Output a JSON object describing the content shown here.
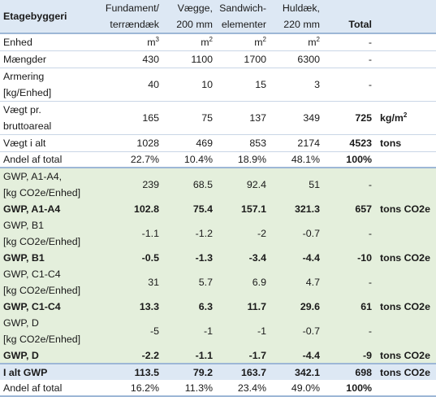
{
  "header": {
    "title": "Etagebyggeri",
    "col1": [
      "Fundament/",
      "terrændæk"
    ],
    "col2": [
      "Vægge,",
      "200 mm"
    ],
    "col3": [
      "Sandwich-",
      "elementer"
    ],
    "col4": [
      "Huldæk,",
      "220 mm"
    ],
    "total": "Total"
  },
  "rows": {
    "enhed": {
      "label": "Enhed",
      "unit_base": "m",
      "c1_exp": "3",
      "c2_exp": "2",
      "c3_exp": "2",
      "c4_exp": "2",
      "total": "-"
    },
    "maengder": {
      "label": "Mængder",
      "c1": "430",
      "c2": "1100",
      "c3": "1700",
      "c4": "6300",
      "total": "-"
    },
    "armering": {
      "label": [
        "Armering",
        "[kg/Enhed]"
      ],
      "c1": "40",
      "c2": "10",
      "c3": "15",
      "c4": "3",
      "total": "-"
    },
    "vaegt_pr": {
      "label": [
        "Vægt pr.",
        "bruttoareal"
      ],
      "c1": "165",
      "c2": "75",
      "c3": "137",
      "c4": "349",
      "total": "725",
      "unit_base": "kg/m",
      "unit_exp": "2"
    },
    "vaegt_alt": {
      "label": "Vægt i alt",
      "c1": "1028",
      "c2": "469",
      "c3": "853",
      "c4": "2174",
      "total": "4523",
      "unit": "tons"
    },
    "andel": {
      "label": "Andel af total",
      "c1": "22.7%",
      "c2": "10.4%",
      "c3": "18.9%",
      "c4": "48.1%",
      "total": "100%"
    },
    "gwp_a_factor": {
      "label": [
        "GWP, A1-A4,",
        "[kg CO2e/Enhed]"
      ],
      "c1": "239",
      "c2": "68.5",
      "c3": "92.4",
      "c4": "51",
      "total": "-"
    },
    "gwp_a": {
      "label": "GWP, A1-A4",
      "c1": "102.8",
      "c2": "75.4",
      "c3": "157.1",
      "c4": "321.3",
      "total": "657",
      "unit": "tons CO2e"
    },
    "gwp_b_factor": {
      "label": [
        "GWP, B1",
        "[kg CO2e/Enhed]"
      ],
      "c1": "-1.1",
      "c2": "-1.2",
      "c3": "-2",
      "c4": "-0.7",
      "total": "-"
    },
    "gwp_b": {
      "label": "GWP, B1",
      "c1": "-0.5",
      "c2": "-1.3",
      "c3": "-3.4",
      "c4": "-4.4",
      "total": "-10",
      "unit": "tons CO2e"
    },
    "gwp_c_factor": {
      "label": [
        "GWP, C1-C4",
        "[kg CO2e/Enhed]"
      ],
      "c1": "31",
      "c2": "5.7",
      "c3": "6.9",
      "c4": "4.7",
      "total": "-"
    },
    "gwp_c": {
      "label": "GWP, C1-C4",
      "c1": "13.3",
      "c2": "6.3",
      "c3": "11.7",
      "c4": "29.6",
      "total": "61",
      "unit": "tons CO2e"
    },
    "gwp_d_factor": {
      "label": [
        "GWP, D",
        "[kg CO2e/Enhed]"
      ],
      "c1": "-5",
      "c2": "-1",
      "c3": "-1",
      "c4": "-0.7",
      "total": "-"
    },
    "gwp_d": {
      "label": "GWP, D",
      "c1": "-2.2",
      "c2": "-1.1",
      "c3": "-1.7",
      "c4": "-4.4",
      "total": "-9",
      "unit": "tons CO2e"
    },
    "i_alt": {
      "label": "I alt GWP",
      "c1": "113.5",
      "c2": "79.2",
      "c3": "163.7",
      "c4": "342.1",
      "total": "698",
      "unit": "tons CO2e"
    },
    "andel_total": {
      "label": "Andel af total",
      "c1": "16.2%",
      "c2": "11.3%",
      "c3": "23.4%",
      "c4": "49.0%",
      "total": "100%"
    }
  },
  "colors": {
    "header_blue": "#dde8f4",
    "gwp_green": "#e4efdc",
    "line_blue": "#9db7d6"
  }
}
